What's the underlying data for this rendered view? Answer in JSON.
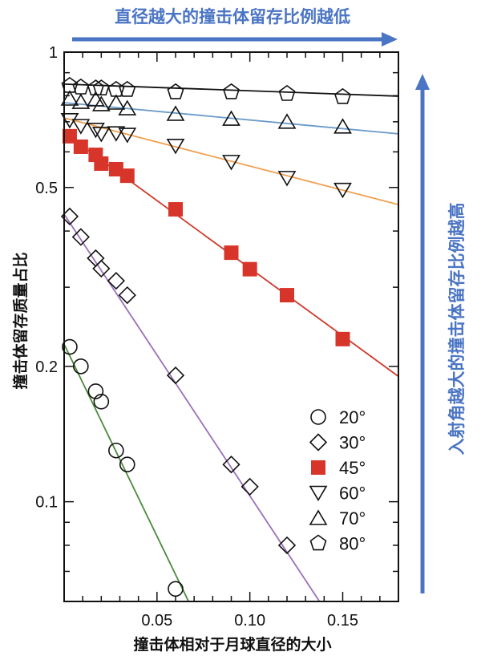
{
  "annotations": {
    "top_text": "直径越大的撞击体留存比例越低",
    "right_text": "入射角越大的撞击体留存比例越高",
    "arrow_color": "#4a74c4"
  },
  "chart_data": {
    "type": "scatter",
    "title": "",
    "xlabel": "撞击体相对于月球直径的大小",
    "ylabel": "撞击体留存质量占比",
    "xlim": [
      0,
      0.18
    ],
    "ylim": [
      0.06,
      1
    ],
    "yscale": "log",
    "x_ticks": [
      {
        "v": 0.05,
        "label": "0.05"
      },
      {
        "v": 0.1,
        "label": "0.10"
      },
      {
        "v": 0.15,
        "label": "0.15"
      }
    ],
    "y_ticks": [
      {
        "v": 1,
        "label": "1"
      },
      {
        "v": 0.5,
        "label": "0.5"
      },
      {
        "v": 0.2,
        "label": "0.2"
      },
      {
        "v": 0.1,
        "label": "0.1"
      }
    ],
    "grid": false,
    "legend_position": "bottom-right",
    "series": [
      {
        "name": "20°",
        "marker": "circle",
        "fill": "none",
        "line_color": "#4a8a3a",
        "x": [
          0.003,
          0.009,
          0.017,
          0.02,
          0.028,
          0.034,
          0.06
        ],
        "y": [
          0.221,
          0.2,
          0.176,
          0.167,
          0.13,
          0.121,
          0.064
        ],
        "fit": [
          [
            0,
            0.224
          ],
          [
            0.067,
            0.06
          ]
        ]
      },
      {
        "name": "30°",
        "marker": "diamond",
        "fill": "none",
        "line_color": "#9b6fb8",
        "x": [
          0.003,
          0.009,
          0.017,
          0.02,
          0.028,
          0.034,
          0.06,
          0.09,
          0.1,
          0.12
        ],
        "y": [
          0.431,
          0.388,
          0.348,
          0.33,
          0.31,
          0.288,
          0.191,
          0.121,
          0.108,
          0.08
        ],
        "fit": [
          [
            0,
            0.436
          ],
          [
            0.1375,
            0.06
          ]
        ]
      },
      {
        "name": "45°",
        "marker": "square",
        "fill": "#d8352a",
        "line_color": "#d0392b",
        "x": [
          0.003,
          0.009,
          0.017,
          0.02,
          0.028,
          0.034,
          0.06,
          0.09,
          0.1,
          0.12,
          0.15
        ],
        "y": [
          0.65,
          0.616,
          0.591,
          0.565,
          0.549,
          0.531,
          0.447,
          0.358,
          0.329,
          0.288,
          0.23
        ],
        "fit": [
          [
            0,
            0.661
          ],
          [
            0.18,
            0.19
          ]
        ]
      },
      {
        "name": "60°",
        "marker": "triangle-down",
        "fill": "none",
        "line_color": "#f0a050",
        "x": [
          0.003,
          0.009,
          0.017,
          0.02,
          0.028,
          0.034,
          0.06,
          0.09,
          0.12,
          0.15
        ],
        "y": [
          0.706,
          0.685,
          0.672,
          0.658,
          0.66,
          0.655,
          0.619,
          0.57,
          0.525,
          0.494
        ],
        "fit": [
          [
            0,
            0.714
          ],
          [
            0.18,
            0.458
          ]
        ]
      },
      {
        "name": "70°",
        "marker": "triangle-up",
        "fill": "none",
        "line_color": "#6a9ac8",
        "x": [
          0.003,
          0.009,
          0.017,
          0.02,
          0.028,
          0.034,
          0.06,
          0.09,
          0.12,
          0.15
        ],
        "y": [
          0.788,
          0.775,
          0.785,
          0.766,
          0.772,
          0.75,
          0.729,
          0.711,
          0.7,
          0.683
        ],
        "fit": [
          [
            0,
            0.772
          ],
          [
            0.18,
            0.658
          ]
        ]
      },
      {
        "name": "80°",
        "marker": "pentagon",
        "fill": "none",
        "line_color": "#111111",
        "x": [
          0.003,
          0.009,
          0.017,
          0.02,
          0.028,
          0.034,
          0.06,
          0.09,
          0.12,
          0.15
        ],
        "y": [
          0.842,
          0.835,
          0.831,
          0.831,
          0.825,
          0.825,
          0.815,
          0.815,
          0.808,
          0.795
        ],
        "fit": [
          [
            0,
            0.849
          ],
          [
            0.18,
            0.798
          ]
        ]
      }
    ]
  }
}
